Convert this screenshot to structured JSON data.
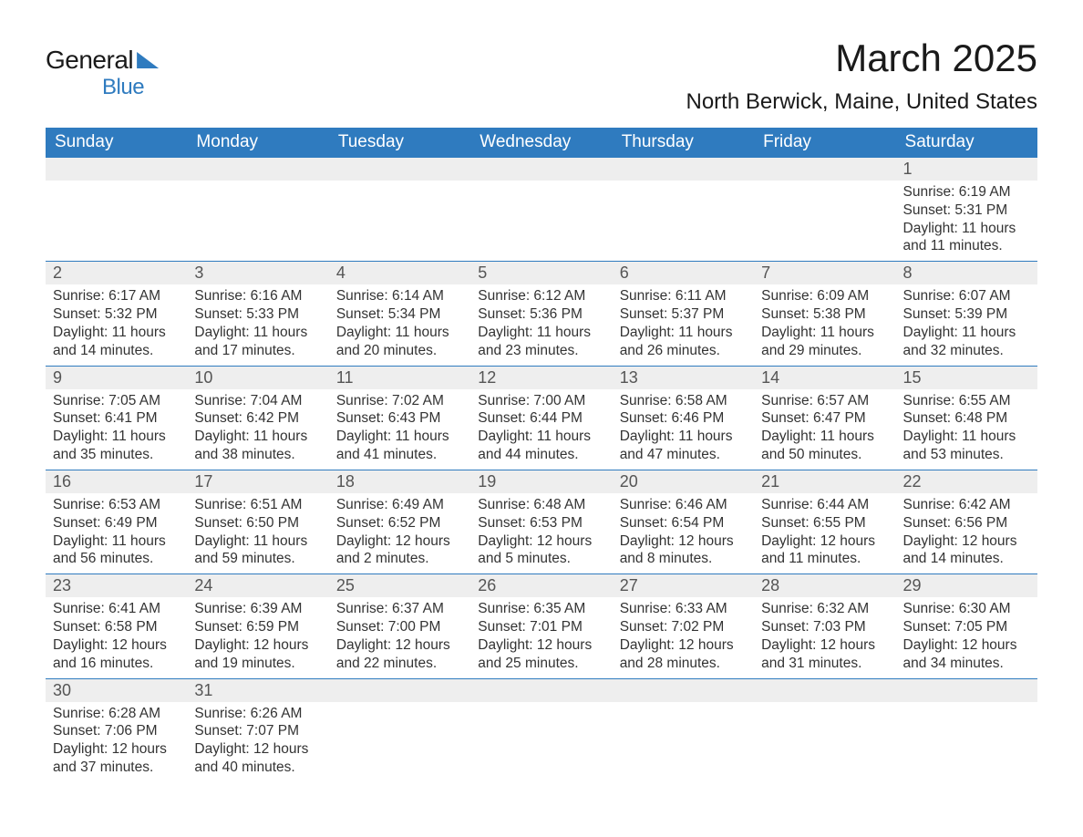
{
  "logo": {
    "text1": "General",
    "text2": "Blue"
  },
  "title": "March 2025",
  "location": "North Berwick, Maine, United States",
  "day_headers": [
    "Sunday",
    "Monday",
    "Tuesday",
    "Wednesday",
    "Thursday",
    "Friday",
    "Saturday"
  ],
  "colors": {
    "header_bg": "#2f7bbf",
    "header_text": "#ffffff",
    "daynum_bg": "#eeeeee",
    "border": "#2f7bbf"
  },
  "weeks": [
    [
      null,
      null,
      null,
      null,
      null,
      null,
      {
        "n": "1",
        "sunrise": "Sunrise: 6:19 AM",
        "sunset": "Sunset: 5:31 PM",
        "daylight": "Daylight: 11 hours and 11 minutes."
      }
    ],
    [
      {
        "n": "2",
        "sunrise": "Sunrise: 6:17 AM",
        "sunset": "Sunset: 5:32 PM",
        "daylight": "Daylight: 11 hours and 14 minutes."
      },
      {
        "n": "3",
        "sunrise": "Sunrise: 6:16 AM",
        "sunset": "Sunset: 5:33 PM",
        "daylight": "Daylight: 11 hours and 17 minutes."
      },
      {
        "n": "4",
        "sunrise": "Sunrise: 6:14 AM",
        "sunset": "Sunset: 5:34 PM",
        "daylight": "Daylight: 11 hours and 20 minutes."
      },
      {
        "n": "5",
        "sunrise": "Sunrise: 6:12 AM",
        "sunset": "Sunset: 5:36 PM",
        "daylight": "Daylight: 11 hours and 23 minutes."
      },
      {
        "n": "6",
        "sunrise": "Sunrise: 6:11 AM",
        "sunset": "Sunset: 5:37 PM",
        "daylight": "Daylight: 11 hours and 26 minutes."
      },
      {
        "n": "7",
        "sunrise": "Sunrise: 6:09 AM",
        "sunset": "Sunset: 5:38 PM",
        "daylight": "Daylight: 11 hours and 29 minutes."
      },
      {
        "n": "8",
        "sunrise": "Sunrise: 6:07 AM",
        "sunset": "Sunset: 5:39 PM",
        "daylight": "Daylight: 11 hours and 32 minutes."
      }
    ],
    [
      {
        "n": "9",
        "sunrise": "Sunrise: 7:05 AM",
        "sunset": "Sunset: 6:41 PM",
        "daylight": "Daylight: 11 hours and 35 minutes."
      },
      {
        "n": "10",
        "sunrise": "Sunrise: 7:04 AM",
        "sunset": "Sunset: 6:42 PM",
        "daylight": "Daylight: 11 hours and 38 minutes."
      },
      {
        "n": "11",
        "sunrise": "Sunrise: 7:02 AM",
        "sunset": "Sunset: 6:43 PM",
        "daylight": "Daylight: 11 hours and 41 minutes."
      },
      {
        "n": "12",
        "sunrise": "Sunrise: 7:00 AM",
        "sunset": "Sunset: 6:44 PM",
        "daylight": "Daylight: 11 hours and 44 minutes."
      },
      {
        "n": "13",
        "sunrise": "Sunrise: 6:58 AM",
        "sunset": "Sunset: 6:46 PM",
        "daylight": "Daylight: 11 hours and 47 minutes."
      },
      {
        "n": "14",
        "sunrise": "Sunrise: 6:57 AM",
        "sunset": "Sunset: 6:47 PM",
        "daylight": "Daylight: 11 hours and 50 minutes."
      },
      {
        "n": "15",
        "sunrise": "Sunrise: 6:55 AM",
        "sunset": "Sunset: 6:48 PM",
        "daylight": "Daylight: 11 hours and 53 minutes."
      }
    ],
    [
      {
        "n": "16",
        "sunrise": "Sunrise: 6:53 AM",
        "sunset": "Sunset: 6:49 PM",
        "daylight": "Daylight: 11 hours and 56 minutes."
      },
      {
        "n": "17",
        "sunrise": "Sunrise: 6:51 AM",
        "sunset": "Sunset: 6:50 PM",
        "daylight": "Daylight: 11 hours and 59 minutes."
      },
      {
        "n": "18",
        "sunrise": "Sunrise: 6:49 AM",
        "sunset": "Sunset: 6:52 PM",
        "daylight": "Daylight: 12 hours and 2 minutes."
      },
      {
        "n": "19",
        "sunrise": "Sunrise: 6:48 AM",
        "sunset": "Sunset: 6:53 PM",
        "daylight": "Daylight: 12 hours and 5 minutes."
      },
      {
        "n": "20",
        "sunrise": "Sunrise: 6:46 AM",
        "sunset": "Sunset: 6:54 PM",
        "daylight": "Daylight: 12 hours and 8 minutes."
      },
      {
        "n": "21",
        "sunrise": "Sunrise: 6:44 AM",
        "sunset": "Sunset: 6:55 PM",
        "daylight": "Daylight: 12 hours and 11 minutes."
      },
      {
        "n": "22",
        "sunrise": "Sunrise: 6:42 AM",
        "sunset": "Sunset: 6:56 PM",
        "daylight": "Daylight: 12 hours and 14 minutes."
      }
    ],
    [
      {
        "n": "23",
        "sunrise": "Sunrise: 6:41 AM",
        "sunset": "Sunset: 6:58 PM",
        "daylight": "Daylight: 12 hours and 16 minutes."
      },
      {
        "n": "24",
        "sunrise": "Sunrise: 6:39 AM",
        "sunset": "Sunset: 6:59 PM",
        "daylight": "Daylight: 12 hours and 19 minutes."
      },
      {
        "n": "25",
        "sunrise": "Sunrise: 6:37 AM",
        "sunset": "Sunset: 7:00 PM",
        "daylight": "Daylight: 12 hours and 22 minutes."
      },
      {
        "n": "26",
        "sunrise": "Sunrise: 6:35 AM",
        "sunset": "Sunset: 7:01 PM",
        "daylight": "Daylight: 12 hours and 25 minutes."
      },
      {
        "n": "27",
        "sunrise": "Sunrise: 6:33 AM",
        "sunset": "Sunset: 7:02 PM",
        "daylight": "Daylight: 12 hours and 28 minutes."
      },
      {
        "n": "28",
        "sunrise": "Sunrise: 6:32 AM",
        "sunset": "Sunset: 7:03 PM",
        "daylight": "Daylight: 12 hours and 31 minutes."
      },
      {
        "n": "29",
        "sunrise": "Sunrise: 6:30 AM",
        "sunset": "Sunset: 7:05 PM",
        "daylight": "Daylight: 12 hours and 34 minutes."
      }
    ],
    [
      {
        "n": "30",
        "sunrise": "Sunrise: 6:28 AM",
        "sunset": "Sunset: 7:06 PM",
        "daylight": "Daylight: 12 hours and 37 minutes."
      },
      {
        "n": "31",
        "sunrise": "Sunrise: 6:26 AM",
        "sunset": "Sunset: 7:07 PM",
        "daylight": "Daylight: 12 hours and 40 minutes."
      },
      null,
      null,
      null,
      null,
      null
    ]
  ]
}
